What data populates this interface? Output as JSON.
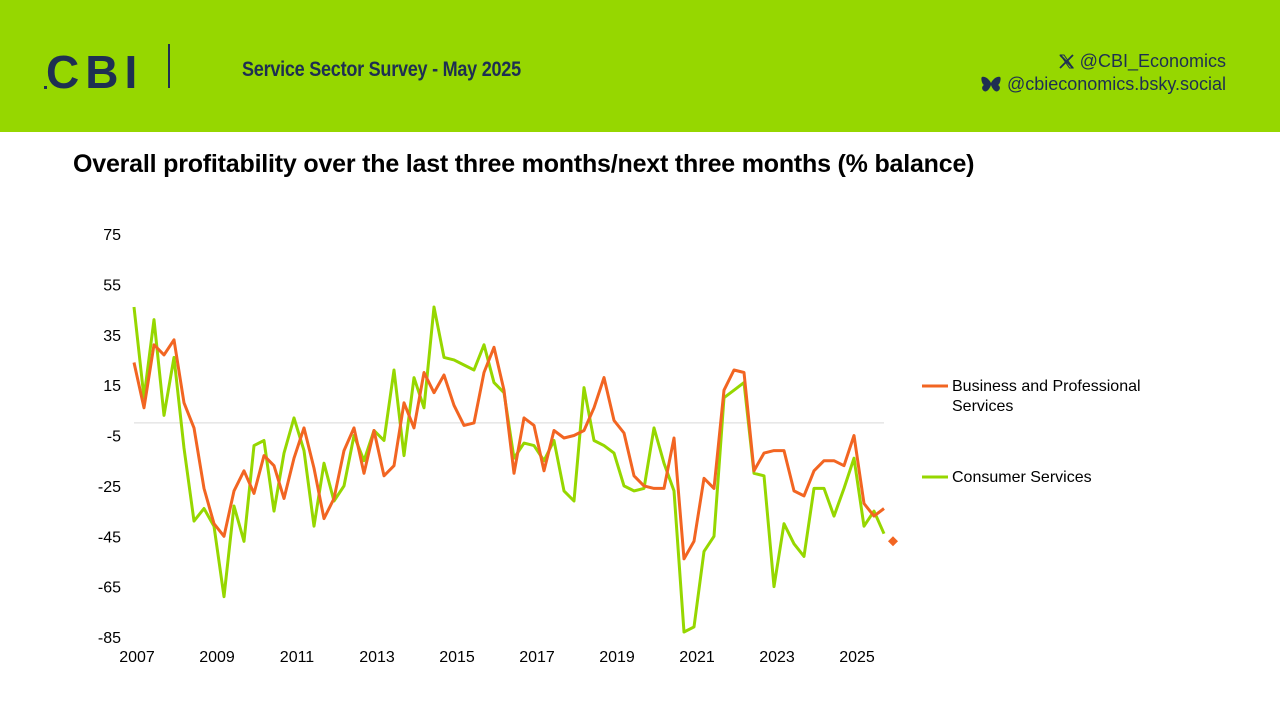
{
  "header": {
    "logo_text": "CBI",
    "survey_title": "Service Sector Survey - May 2025",
    "x_handle": "@CBI_Economics",
    "bluesky_handle": "@cbieconomics.bsky.social",
    "background_color": "#96d700",
    "text_color": "#1e2f52"
  },
  "chart_data": {
    "type": "line",
    "title": "Overall profitability over the last three months/next three months (% balance)",
    "xlabel": "",
    "ylabel": "",
    "ylim": [
      -85,
      75
    ],
    "yticks": [
      75,
      55,
      35,
      15,
      -5,
      -25,
      -45,
      -65,
      -85
    ],
    "xtick_labels": [
      "2007",
      "2009",
      "2011",
      "2013",
      "2015",
      "2017",
      "2019",
      "2021",
      "2023",
      "2025"
    ],
    "x_start": "2007 Q1",
    "frequency": "quarterly",
    "series": [
      {
        "name": "Business and Professional Services",
        "color": "#f26522",
        "values": [
          24,
          6,
          31,
          27,
          33,
          8,
          -2,
          -26,
          -40,
          -45,
          -27,
          -19,
          -28,
          -13,
          -17,
          -30,
          -14,
          -2,
          -18,
          -38,
          -30,
          -11,
          -2,
          -20,
          -3,
          -21,
          -17,
          8,
          -2,
          20,
          12,
          19,
          7,
          -1,
          0,
          20,
          30,
          13,
          -20,
          2,
          -1,
          -19,
          -3,
          -6,
          -5,
          -3,
          6,
          18,
          1,
          -4,
          -21,
          -25,
          -26,
          -26,
          -6,
          -54,
          -47,
          -22,
          -26,
          13,
          21,
          20,
          -19,
          -12,
          -11,
          -11,
          -27,
          -29,
          -19,
          -15,
          -15,
          -17,
          -5,
          -32,
          -37,
          -34
        ],
        "forecast": {
          "after_index": 75,
          "value": -47
        }
      },
      {
        "name": "Consumer Services",
        "color": "#96d700",
        "values": [
          46,
          10,
          41,
          3,
          26,
          -10,
          -39,
          -34,
          -41,
          -69,
          -33,
          -47,
          -9,
          -7,
          -35,
          -12,
          2,
          -11,
          -41,
          -16,
          -31,
          -25,
          -5,
          -15,
          -3,
          -7,
          21,
          -13,
          18,
          6,
          46,
          26,
          25,
          23,
          21,
          31,
          16,
          12,
          -14,
          -8,
          -9,
          -15,
          -7,
          -27,
          -31,
          14,
          -7,
          -9,
          -12,
          -25,
          -27,
          -26,
          -2,
          -16,
          -27,
          -83,
          -81,
          -51,
          -45,
          10,
          13,
          16,
          -20,
          -21,
          -65,
          -40,
          -48,
          -53,
          -26,
          -26,
          -37,
          -26,
          -14,
          -41,
          -35,
          -44
        ]
      }
    ],
    "legend_position": "right",
    "zero_line": true
  }
}
